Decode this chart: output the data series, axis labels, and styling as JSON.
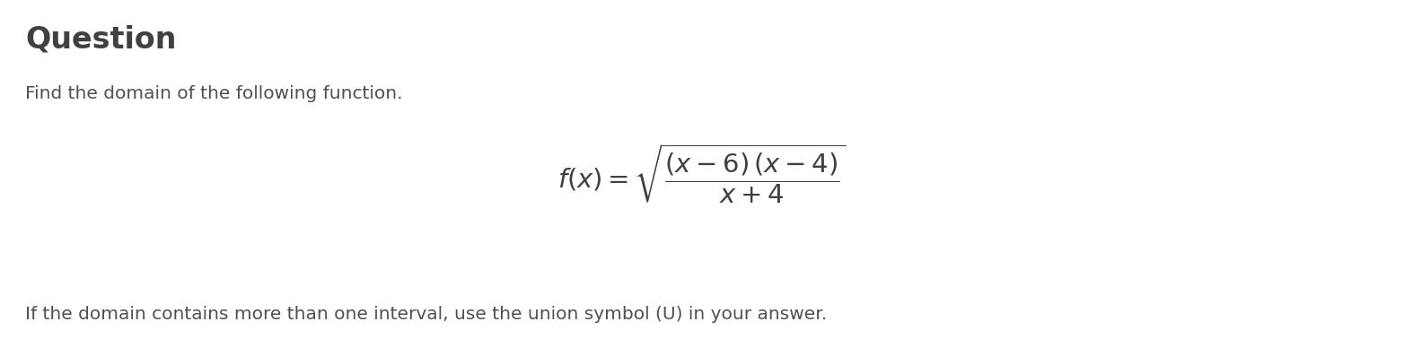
{
  "background_color": "#ffffff",
  "title_text": "Question",
  "title_fontsize": 24,
  "title_fontweight": "bold",
  "title_color": "#404040",
  "subtitle_text": "Find the domain of the following function.",
  "subtitle_fontsize": 14.5,
  "subtitle_color": "#505050",
  "formula_text": "$f(x) = \\sqrt{\\dfrac{(x - 6)\\,(x - 4)}{x + 4}}$",
  "formula_fontsize": 21,
  "formula_color": "#404040",
  "footer_text": "If the domain contains more than one interval, use the union symbol (U) in your answer.",
  "footer_fontsize": 14.5,
  "footer_color": "#505050",
  "fig_width": 15.64,
  "fig_height": 3.88,
  "dpi": 100
}
